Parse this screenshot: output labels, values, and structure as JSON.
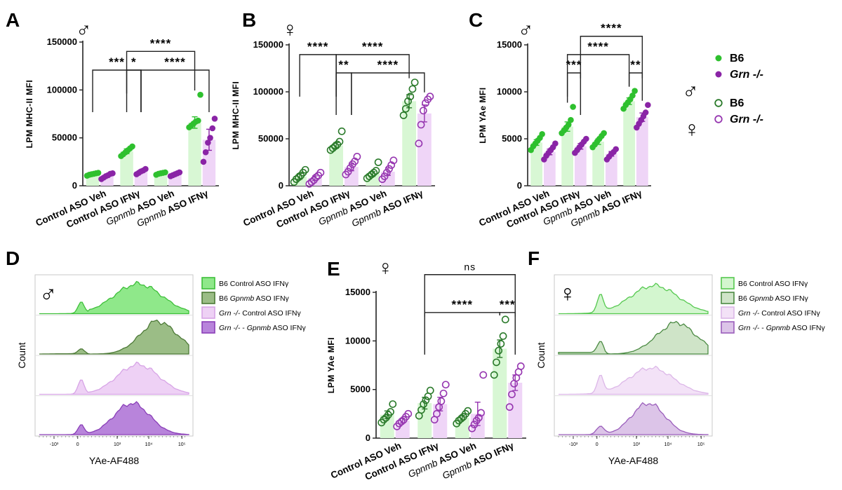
{
  "colors": {
    "b6": "#2ec02e",
    "grn": "#8a24a6",
    "b6_bar": "#d8f7d4",
    "grn_bar": "#efd5f7",
    "b6_dark": "#1f7a22",
    "grn_light": "#b270c7",
    "female_b6": "#2a7a2a",
    "female_grn": "#9636b0"
  },
  "panel_letters": [
    "A",
    "B",
    "C",
    "D",
    "E",
    "F"
  ],
  "sex_symbols": {
    "male": "♂",
    "female": "♀"
  },
  "category_labels": [
    {
      "pre": "Control ASO Veh",
      "gene": "",
      "post": ""
    },
    {
      "pre": "Control ASO IFNγ",
      "gene": "",
      "post": ""
    },
    {
      "pre": "",
      "gene": "Gpnmb",
      "post": " ASO Veh"
    },
    {
      "pre": "",
      "gene": "Gpnmb",
      "post": " ASO IFNγ"
    }
  ],
  "legend": {
    "entries": [
      {
        "sex": "♂",
        "label": "B6",
        "italic": false,
        "marker": "filled",
        "group": "b6"
      },
      {
        "sex": "",
        "label": "Grn -/-",
        "italic": true,
        "marker": "filled",
        "group": "grn"
      },
      {
        "sex": "♀",
        "label": "B6",
        "italic": false,
        "marker": "open",
        "group": "b6"
      },
      {
        "sex": "",
        "label": "Grn -/-",
        "italic": true,
        "marker": "open",
        "group": "grn"
      }
    ]
  },
  "chart_data": [
    {
      "panel": "A",
      "type": "bar",
      "sex": "male",
      "marker": "filled",
      "ylabel": "LPM MHC-II MFI",
      "ylim": [
        0,
        150000
      ],
      "yticks": [
        0,
        50000,
        100000,
        150000
      ],
      "categories": [
        "Control ASO Veh",
        "Control ASO IFNγ",
        "Gpnmb ASO Veh",
        "Gpnmb ASO IFNγ"
      ],
      "series": [
        {
          "name": "B6",
          "values": [
            12000,
            36000,
            13000,
            66000
          ],
          "error": [
            1000,
            2500,
            900,
            6000
          ],
          "points": [
            [
              10500,
              11500,
              12000,
              12500,
              13000,
              13500
            ],
            [
              31000,
              33000,
              35000,
              37000,
              39000,
              41000
            ],
            [
              11500,
              12500,
              13000,
              13500,
              14000
            ],
            [
              61000,
              63000,
              65000,
              67000,
              68000,
              95000
            ]
          ]
        },
        {
          "name": "Grn -/-",
          "values": [
            10000,
            15000,
            12000,
            48000
          ],
          "error": [
            1200,
            1500,
            1000,
            11000
          ],
          "points": [
            [
              7000,
              8500,
              10000,
              11000,
              12500,
              13000
            ],
            [
              12000,
              13500,
              15000,
              16000,
              17500
            ],
            [
              10000,
              11000,
              12000,
              13000,
              14000
            ],
            [
              25000,
              35000,
              45000,
              50000,
              60000,
              70000
            ]
          ]
        }
      ],
      "significance": [
        {
          "from": [
            0,
            0
          ],
          "to": [
            1,
            1
          ],
          "label": "***",
          "level": 1
        },
        {
          "from": [
            1,
            0
          ],
          "to": [
            1,
            1
          ],
          "label": "*",
          "level": 1
        },
        {
          "from": [
            1,
            1
          ],
          "to": [
            3,
            1
          ],
          "label": "****",
          "level": 1
        },
        {
          "from": [
            1,
            0
          ],
          "to": [
            3,
            0
          ],
          "label": "****",
          "level": 2
        }
      ]
    },
    {
      "panel": "B",
      "type": "bar",
      "sex": "female",
      "marker": "open",
      "ylabel": "LPM MHC-II MFI",
      "ylim": [
        0,
        150000
      ],
      "yticks": [
        0,
        50000,
        100000,
        150000
      ],
      "categories": [
        "Control ASO Veh",
        "Control ASO IFNγ",
        "Gpnmb ASO Veh",
        "Gpnmb ASO IFNγ"
      ],
      "series": [
        {
          "name": "B6",
          "values": [
            10000,
            43000,
            12500,
            90000
          ],
          "error": [
            3000,
            3000,
            2500,
            7000
          ],
          "points": [
            [
              4000,
              7000,
              9000,
              11000,
              14000,
              17000
            ],
            [
              38000,
              40000,
              42000,
              44000,
              47000,
              58000
            ],
            [
              8000,
              10000,
              12000,
              14000,
              16000,
              25000
            ],
            [
              75000,
              82000,
              90000,
              95000,
              103000,
              110000
            ]
          ]
        },
        {
          "name": "Grn -/-",
          "values": [
            8000,
            20000,
            15000,
            77000
          ],
          "error": [
            2500,
            4000,
            4000,
            9000
          ],
          "points": [
            [
              2000,
              4000,
              6000,
              9000,
              11000,
              14000
            ],
            [
              12000,
              15000,
              19000,
              23000,
              26000,
              31000
            ],
            [
              7000,
              10000,
              14000,
              18000,
              22000,
              27000
            ],
            [
              45000,
              65000,
              80000,
              88000,
              92000,
              95000
            ]
          ]
        }
      ],
      "significance": [
        {
          "from": [
            0,
            0
          ],
          "to": [
            1,
            0
          ],
          "label": "****",
          "level": 2
        },
        {
          "from": [
            1,
            0
          ],
          "to": [
            1,
            1
          ],
          "label": "**",
          "level": 1
        },
        {
          "from": [
            1,
            1
          ],
          "to": [
            3,
            1
          ],
          "label": "****",
          "level": 1
        },
        {
          "from": [
            1,
            0
          ],
          "to": [
            3,
            0
          ],
          "label": "****",
          "level": 2
        }
      ]
    },
    {
      "panel": "C",
      "type": "bar",
      "sex": "male",
      "marker": "filled",
      "ylabel": "LPM YAe MFI",
      "ylim": [
        0,
        15000
      ],
      "yticks": [
        0,
        5000,
        10000,
        15000
      ],
      "categories": [
        "Control ASO Veh",
        "Control ASO IFNγ",
        "Gpnmb ASO Veh",
        "Gpnmb ASO IFNγ"
      ],
      "series": [
        {
          "name": "B6",
          "values": [
            4600,
            6300,
            4700,
            9000
          ],
          "error": [
            300,
            500,
            300,
            350
          ],
          "points": [
            [
              3800,
              4200,
              4500,
              4800,
              5100,
              5500
            ],
            [
              5600,
              5900,
              6200,
              6500,
              7000,
              8400
            ],
            [
              4100,
              4400,
              4700,
              5000,
              5300,
              5600
            ],
            [
              8200,
              8600,
              8900,
              9200,
              9600,
              10100
            ]
          ]
        },
        {
          "name": "Grn -/-",
          "values": [
            3600,
            4200,
            3400,
            7300
          ],
          "error": [
            300,
            300,
            250,
            450
          ],
          "points": [
            [
              2800,
              3200,
              3500,
              3800,
              4100,
              4500
            ],
            [
              3500,
              3800,
              4100,
              4400,
              4700,
              5000
            ],
            [
              2800,
              3100,
              3400,
              3600,
              3900
            ],
            [
              6200,
              6600,
              7000,
              7400,
              7800,
              8600
            ]
          ]
        }
      ],
      "significance": [
        {
          "from": [
            1,
            0
          ],
          "to": [
            1,
            1
          ],
          "label": "***",
          "level": 1
        },
        {
          "from": [
            3,
            0
          ],
          "to": [
            3,
            1
          ],
          "label": "**",
          "level": 1
        },
        {
          "from": [
            1,
            0
          ],
          "to": [
            3,
            0
          ],
          "label": "****",
          "level": 2
        },
        {
          "from": [
            1,
            1
          ],
          "to": [
            3,
            1
          ],
          "label": "****",
          "level": 3
        }
      ]
    },
    {
      "panel": "E",
      "type": "bar",
      "sex": "female",
      "marker": "open",
      "ylabel": "LPM YAe MFI",
      "ylim": [
        0,
        15000
      ],
      "yticks": [
        0,
        5000,
        10000,
        15000
      ],
      "categories": [
        "Control ASO Veh",
        "Control ASO IFNγ",
        "Gpnmb ASO Veh",
        "Gpnmb ASO IFNγ"
      ],
      "series": [
        {
          "name": "B6",
          "values": [
            2400,
            3600,
            2100,
            9200
          ],
          "error": [
            400,
            600,
            250,
            900
          ],
          "points": [
            [
              1600,
              1900,
              2100,
              2400,
              2700,
              3500
            ],
            [
              2300,
              2900,
              3500,
              3900,
              4300,
              4900
            ],
            [
              1500,
              1800,
              2000,
              2200,
              2500,
              2800
            ],
            [
              6500,
              7800,
              9000,
              9700,
              10500,
              12200
            ]
          ]
        },
        {
          "name": "Grn -/-",
          "values": [
            1800,
            3500,
            2500,
            5700
          ],
          "error": [
            250,
            700,
            1200,
            800
          ],
          "points": [
            [
              1200,
              1500,
              1700,
              1900,
              2200,
              2500
            ],
            [
              1900,
              2500,
              3200,
              3800,
              4600,
              5500
            ],
            [
              1000,
              1400,
              1800,
              2100,
              2600,
              6500
            ],
            [
              3200,
              4500,
              5600,
              6200,
              6800,
              7400
            ]
          ]
        }
      ],
      "significance": [
        {
          "from": [
            3,
            0
          ],
          "to": [
            3,
            1
          ],
          "label": "***",
          "level": 1
        },
        {
          "from": [
            1,
            0
          ],
          "to": [
            3,
            0
          ],
          "label": "****",
          "level": 1
        },
        {
          "from": [
            1,
            0
          ],
          "to": [
            3,
            1
          ],
          "label": "ns",
          "level": 3
        }
      ]
    }
  ],
  "flow_panels": [
    {
      "panel": "D",
      "sex": "♂",
      "xlabel": "YAe-AF488",
      "ylabel": "Count",
      "xticks": [
        "-10³",
        "0",
        "10³",
        "10⁴",
        "10⁵"
      ],
      "legend": [
        {
          "prefix": "B6 ",
          "gene": "",
          "mid": "",
          "gene2": "",
          "suffix": "Control ASO IFNγ",
          "fill": "#8fe88a",
          "stroke": "#3dbf39"
        },
        {
          "prefix": "B6 ",
          "gene": "Gpnmb",
          "mid": "",
          "gene2": "",
          "suffix": " ASO IFNγ",
          "fill": "#9bbd86",
          "stroke": "#4d7a37"
        },
        {
          "prefix": "",
          "gene": "Grn -/-",
          "mid": " Control ASO IFNγ",
          "gene2": "",
          "suffix": "",
          "fill": "#eed1f5",
          "stroke": "#d7a4e6"
        },
        {
          "prefix": "",
          "gene": "Grn -/-",
          "mid": " - ",
          "gene2": "Gpnmb",
          "suffix": " ASO IFNγ",
          "fill": "#b884db",
          "stroke": "#8a3fb8"
        }
      ]
    },
    {
      "panel": "F",
      "sex": "♀",
      "xlabel": "YAe-AF488",
      "ylabel": "Count",
      "xticks": [
        "-10³",
        "0",
        "10³",
        "10⁴",
        "10⁵"
      ],
      "legend": [
        {
          "prefix": "B6 ",
          "gene": "",
          "mid": "",
          "gene2": "",
          "suffix": "Control ASO IFNγ",
          "fill": "#d3f6cf",
          "stroke": "#55c84f"
        },
        {
          "prefix": "B6 ",
          "gene": "Gpnmb",
          "mid": "",
          "gene2": "",
          "suffix": " ASO IFNγ",
          "fill": "#cfe4c8",
          "stroke": "#4b8a43"
        },
        {
          "prefix": "",
          "gene": "Grn -/-",
          "mid": " Control ASO IFNγ",
          "gene2": "",
          "suffix": "",
          "fill": "#f3e2f7",
          "stroke": "#dcb7e8"
        },
        {
          "prefix": "",
          "gene": "Grn -/-",
          "mid": " - ",
          "gene2": "Gpnmb",
          "suffix": " ASO IFNγ",
          "fill": "#dcc4e8",
          "stroke": "#9a5dbb"
        }
      ]
    }
  ]
}
